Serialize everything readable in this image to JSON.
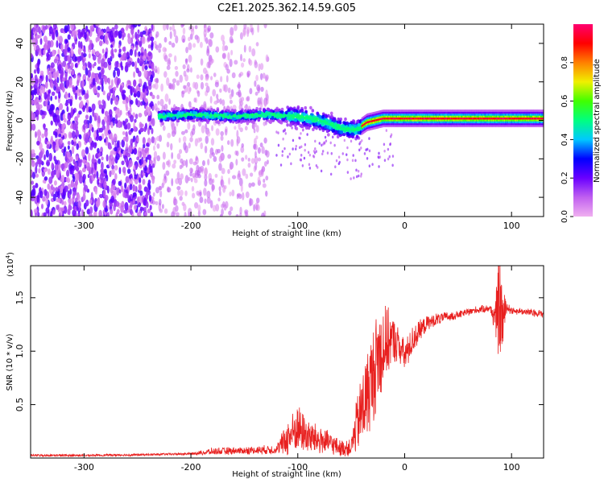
{
  "figure": {
    "title": "C2E1.2025.362.14.59.G05"
  },
  "chart_data": [
    {
      "type": "heatmap",
      "xlabel": "Height of straight line (km)",
      "ylabel": "Frequency (Hz)",
      "xlim": [
        -350,
        130
      ],
      "ylim": [
        -50,
        50
      ],
      "xticks": [
        -300,
        -200,
        -100,
        0,
        100
      ],
      "yticks": [
        -40,
        -20,
        0,
        20,
        40
      ],
      "colorbar": {
        "label": "Normalized spectral amplitude",
        "range": [
          0,
          1
        ],
        "ticks": [
          0.0,
          0.2,
          0.4,
          0.6,
          0.8
        ],
        "colormap": [
          "#f0b0f0",
          "#c060f0",
          "#6a00ff",
          "#0000ff",
          "#00c8ff",
          "#00ff80",
          "#40ff00",
          "#f0f000",
          "#ff8000",
          "#ff0000",
          "#ff0070"
        ]
      },
      "regions": [
        {
          "x_range": [
            -350,
            -235
          ],
          "pattern": "dense noise, full band",
          "amplitude": 0.15
        },
        {
          "x_range": [
            -235,
            -128
          ],
          "pattern": "sparse noise, full band",
          "amplitude": 0.08
        },
        {
          "x_range": [
            -230,
            -40
          ],
          "pattern": "signal trace near 0 Hz",
          "amplitude": 0.35
        },
        {
          "x_range": [
            -40,
            130
          ],
          "pattern": "narrow band at 0 Hz",
          "amplitude": 0.95
        }
      ],
      "trace_center": [
        {
          "x": -230,
          "y": 2
        },
        {
          "x": -200,
          "y": 3
        },
        {
          "x": -160,
          "y": 2
        },
        {
          "x": -130,
          "y": 3
        },
        {
          "x": -100,
          "y": 2
        },
        {
          "x": -80,
          "y": 0
        },
        {
          "x": -60,
          "y": -4
        },
        {
          "x": -45,
          "y": -5
        },
        {
          "x": -35,
          "y": -1
        },
        {
          "x": -20,
          "y": 1
        },
        {
          "x": 0,
          "y": 1
        },
        {
          "x": 130,
          "y": 1
        }
      ]
    },
    {
      "type": "line",
      "xlabel": "Height of straight line (km)",
      "ylabel": "SNR (10 * v/v)",
      "scale_label": "(x10",
      "scale_exp": "4",
      "xlim": [
        -350,
        130
      ],
      "ylim": [
        0,
        18000
      ],
      "xticks": [
        -300,
        -200,
        -100,
        0,
        100
      ],
      "yticks": [
        {
          "value": 5000,
          "label": "0.5"
        },
        {
          "value": 10000,
          "label": "1.0"
        },
        {
          "value": 15000,
          "label": "1.5"
        }
      ],
      "series": [
        {
          "color": "#e8201f",
          "x": [
            -350,
            -300,
            -250,
            -200,
            -180,
            -150,
            -120,
            -110,
            -100,
            -90,
            -80,
            -70,
            -60,
            -50,
            -45,
            -40,
            -35,
            -30,
            -25,
            -20,
            -15,
            -10,
            -5,
            0,
            5,
            10,
            15,
            20,
            30,
            40,
            50,
            60,
            70,
            80,
            85,
            88,
            90,
            92,
            95,
            100,
            110,
            120,
            130
          ],
          "values": [
            250,
            250,
            300,
            400,
            600,
            700,
            800,
            1800,
            2800,
            2000,
            1700,
            1400,
            900,
            1000,
            3000,
            4500,
            6000,
            7500,
            9500,
            10500,
            11000,
            11000,
            10500,
            9500,
            10500,
            11500,
            12000,
            12500,
            13000,
            13200,
            13400,
            13700,
            13900,
            14000,
            13000,
            14300,
            13900,
            12800,
            14200,
            13800,
            13700,
            13600,
            13500
          ],
          "noise_amplitude": [
            0,
            0,
            0,
            0,
            300,
            300,
            400,
            1600,
            2200,
            1500,
            1300,
            1000,
            700,
            800,
            2500,
            3500,
            4000,
            4500,
            4500,
            4000,
            3000,
            2000,
            1600,
            1400,
            1400,
            1200,
            900,
            700,
            500,
            400,
            300,
            300,
            300,
            300,
            1500,
            5000,
            4000,
            3000,
            600,
            300,
            300,
            300,
            300
          ]
        }
      ]
    }
  ]
}
